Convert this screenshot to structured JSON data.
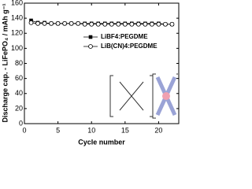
{
  "chart_data": {
    "type": "line",
    "x_label": "Cycle number",
    "y_label": "Discharge cap. - LiFePO₄ / mAh g⁻¹",
    "x": [
      1,
      2,
      3,
      4,
      5,
      6,
      7,
      8,
      9,
      10,
      11,
      12,
      13,
      14,
      15,
      16,
      17,
      18,
      19,
      20,
      21,
      22
    ],
    "series": [
      {
        "name": "LiBF4:PEGDME",
        "color": "#000000",
        "marker": "square",
        "values": [
          137,
          134,
          134,
          133,
          133,
          133,
          133,
          133,
          133,
          133,
          133,
          133,
          133,
          133,
          133,
          133,
          133,
          133,
          133,
          133,
          132,
          132
        ]
      },
      {
        "name": "LiB(CN)4:PEGDME",
        "color": "#000000",
        "marker": "open-circle",
        "values": [
          134,
          133,
          133,
          133,
          133,
          133,
          133,
          133,
          132,
          132,
          132,
          132,
          132,
          132,
          132,
          132,
          132,
          132,
          132,
          132,
          132,
          132
        ]
      }
    ],
    "xlim": [
      0,
      23
    ],
    "xticks": [
      0,
      5,
      10,
      15,
      20
    ],
    "ylim": [
      0,
      160
    ],
    "yticks": [
      0,
      20,
      40,
      60,
      80,
      100,
      120,
      140,
      160
    ],
    "legend": "upper-right"
  }
}
